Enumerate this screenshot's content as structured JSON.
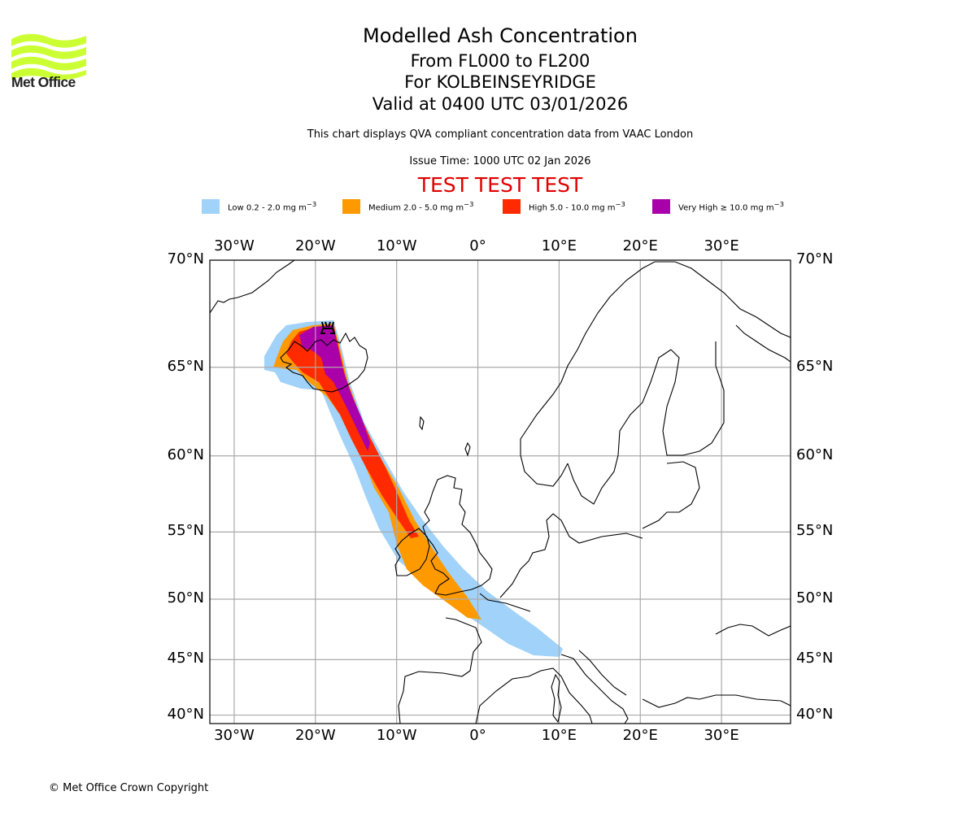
{
  "logo": {
    "name": "Met Office",
    "icon": "met-office-waves-logo",
    "color": "#ccff33"
  },
  "header": {
    "title": "Modelled Ash Concentration",
    "level_range": "From FL000 to FL200",
    "volcano": "For KOLBEINSEYRIDGE",
    "valid": "Valid at 0400 UTC 03/01/2026",
    "subtitle": "This chart displays QVA compliant concentration data from VAAC London",
    "issue_time": "Issue Time: 1000 UTC 02 Jan 2026",
    "test_banner": "TEST TEST TEST",
    "test_color": "#e00000"
  },
  "legend": [
    {
      "label": "Low 0.2 - 2.0 mg m",
      "sup": "−3",
      "color": "#a0d2fa"
    },
    {
      "label": "Medium 2.0 - 5.0 mg m",
      "sup": "−3",
      "color": "#ff9900"
    },
    {
      "label": "High 5.0 - 10.0 mg m",
      "sup": "−3",
      "color": "#ff2a00"
    },
    {
      "label": "Very High ≥ 10.0 mg m",
      "sup": "−3",
      "color": "#aa00aa"
    }
  ],
  "map": {
    "lon_range": [
      -33,
      38.5
    ],
    "lat_range": [
      39.2,
      70
    ],
    "lon_ticks": [
      {
        "value": -30,
        "label": "30°W"
      },
      {
        "value": -20,
        "label": "20°W"
      },
      {
        "value": -10,
        "label": "10°W"
      },
      {
        "value": 0,
        "label": "0°"
      },
      {
        "value": 10,
        "label": "10°E"
      },
      {
        "value": 20,
        "label": "20°E"
      },
      {
        "value": 30,
        "label": "30°E"
      }
    ],
    "lat_ticks": [
      {
        "value": 70,
        "label": "70°N"
      },
      {
        "value": 65,
        "label": "65°N"
      },
      {
        "value": 60,
        "label": "60°N"
      },
      {
        "value": 55,
        "label": "55°N"
      },
      {
        "value": 50,
        "label": "50°N"
      },
      {
        "value": 45,
        "label": "45°N"
      },
      {
        "value": 40,
        "label": "40°N"
      }
    ],
    "volcano_marker": {
      "icon": "volcano-icon",
      "lon": -18.5,
      "lat": 67.2
    },
    "ash_plume": {
      "description": "Ash cloud extending from Iceland south-east across Ireland, Wales, southern England and France to the Alps",
      "levels": [
        "Low",
        "Medium",
        "High",
        "Very High"
      ]
    }
  },
  "footer": {
    "copyright": "© Met Office Crown Copyright"
  }
}
